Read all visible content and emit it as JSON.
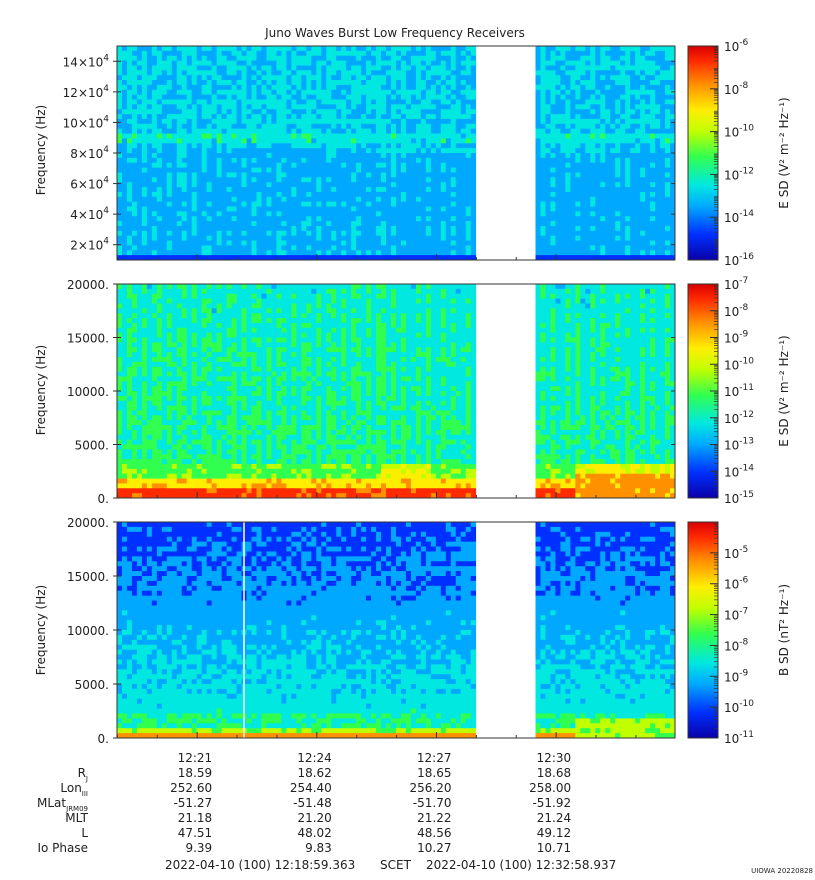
{
  "title": "Juno Waves Burst Low Frequency Receivers",
  "chart_data": [
    {
      "type": "heatmap",
      "panel": "top",
      "ylabel": "Frequency (Hz)",
      "yticks": [
        {
          "mant": "2×10",
          "exp": "4",
          "value": 20000
        },
        {
          "mant": "4×10",
          "exp": "4",
          "value": 40000
        },
        {
          "mant": "6×10",
          "exp": "4",
          "value": 60000
        },
        {
          "mant": "8×10",
          "exp": "4",
          "value": 80000
        },
        {
          "mant": "10×10",
          "exp": "4",
          "value": 100000
        },
        {
          "mant": "12×10",
          "exp": "4",
          "value": 120000
        },
        {
          "mant": "14×10",
          "exp": "4",
          "value": 140000
        }
      ],
      "ylim": [
        10000,
        150000
      ],
      "colorbar": {
        "label": "E SD (V² m⁻² Hz⁻¹)",
        "scale": "log",
        "range": [
          -16,
          -6
        ],
        "ticks": [
          {
            "base": "10",
            "exp": "-6",
            "value": -6
          },
          {
            "base": "10",
            "exp": "-8",
            "value": -8
          },
          {
            "base": "10",
            "exp": "-10",
            "value": -10
          },
          {
            "base": "10",
            "exp": "-12",
            "value": -12
          },
          {
            "base": "10",
            "exp": "-14",
            "value": -14
          },
          {
            "base": "10",
            "exp": "-16",
            "value": -16
          }
        ]
      }
    },
    {
      "type": "heatmap",
      "panel": "middle",
      "ylabel": "Frequency (Hz)",
      "yticks": [
        {
          "label": "0.",
          "value": 0
        },
        {
          "label": "5000.",
          "value": 5000
        },
        {
          "label": "10000.",
          "value": 10000
        },
        {
          "label": "15000.",
          "value": 15000
        },
        {
          "label": "20000.",
          "value": 20000
        }
      ],
      "ylim": [
        0,
        20000
      ],
      "colorbar": {
        "label": "E SD (V² m⁻² Hz⁻¹)",
        "scale": "log",
        "range": [
          -15,
          -7
        ],
        "ticks": [
          {
            "base": "10",
            "exp": "-7",
            "value": -7
          },
          {
            "base": "10",
            "exp": "-8",
            "value": -8
          },
          {
            "base": "10",
            "exp": "-9",
            "value": -9
          },
          {
            "base": "10",
            "exp": "-10",
            "value": -10
          },
          {
            "base": "10",
            "exp": "-11",
            "value": -11
          },
          {
            "base": "10",
            "exp": "-12",
            "value": -12
          },
          {
            "base": "10",
            "exp": "-13",
            "value": -13
          },
          {
            "base": "10",
            "exp": "-14",
            "value": -14
          },
          {
            "base": "10",
            "exp": "-15",
            "value": -15
          }
        ]
      }
    },
    {
      "type": "heatmap",
      "panel": "bottom",
      "ylabel": "Frequency (Hz)",
      "yticks": [
        {
          "label": "0.",
          "value": 0
        },
        {
          "label": "5000.",
          "value": 5000
        },
        {
          "label": "10000.",
          "value": 10000
        },
        {
          "label": "15000.",
          "value": 15000
        },
        {
          "label": "20000.",
          "value": 20000
        }
      ],
      "ylim": [
        0,
        20000
      ],
      "colorbar": {
        "label": "B SD (nT² Hz⁻¹)",
        "scale": "log",
        "range": [
          -11,
          -4
        ],
        "ticks": [
          {
            "base": "10",
            "exp": "-5",
            "value": -5
          },
          {
            "base": "10",
            "exp": "-6",
            "value": -6
          },
          {
            "base": "10",
            "exp": "-7",
            "value": -7
          },
          {
            "base": "10",
            "exp": "-8",
            "value": -8
          },
          {
            "base": "10",
            "exp": "-9",
            "value": -9
          },
          {
            "base": "10",
            "exp": "-10",
            "value": -10
          },
          {
            "base": "10",
            "exp": "-11",
            "value": -11
          }
        ]
      }
    }
  ],
  "time_axis": {
    "start_min": 18.99,
    "end_min": 32.98,
    "gap_start_min": 28.0,
    "gap_end_min": 29.45,
    "ticks": [
      {
        "label": "12:21",
        "min": 21
      },
      {
        "label": "12:24",
        "min": 24
      },
      {
        "label": "12:27",
        "min": 27
      },
      {
        "label": "12:30",
        "min": 30
      }
    ],
    "ephemeris": [
      {
        "name": "Rj",
        "label": "R",
        "sub": "J",
        "values": [
          "18.59",
          "18.62",
          "18.65",
          "18.68"
        ]
      },
      {
        "name": "lon",
        "label": "Lon",
        "sub": "III",
        "values": [
          "252.60",
          "254.40",
          "256.20",
          "258.00"
        ]
      },
      {
        "name": "mlat",
        "label": "MLat",
        "sub": "JRM09",
        "values": [
          "-51.27",
          "-51.48",
          "-51.70",
          "-51.92"
        ]
      },
      {
        "name": "mlt",
        "label": "MLT",
        "sub": "",
        "values": [
          "21.18",
          "21.20",
          "21.22",
          "21.24"
        ]
      },
      {
        "name": "l",
        "label": "L",
        "sub": "",
        "values": [
          "47.51",
          "48.02",
          "48.56",
          "49.12"
        ]
      },
      {
        "name": "iophase",
        "label": "Io Phase",
        "sub": "",
        "values": [
          "9.39",
          "9.83",
          "10.27",
          "10.71"
        ]
      }
    ],
    "start_label": "2022-04-10 (100) 12:18:59.363",
    "scet_label": "SCET",
    "end_label": "2022-04-10 (100) 12:32:58.937"
  },
  "footer_tag": "UIOWA 20220828",
  "colors": {
    "palette": [
      "#0a00a8",
      "#0030ff",
      "#00a8ff",
      "#00e8e0",
      "#30ff50",
      "#c0ff00",
      "#ffee00",
      "#ff9000",
      "#ff2a00",
      "#d80000"
    ]
  }
}
